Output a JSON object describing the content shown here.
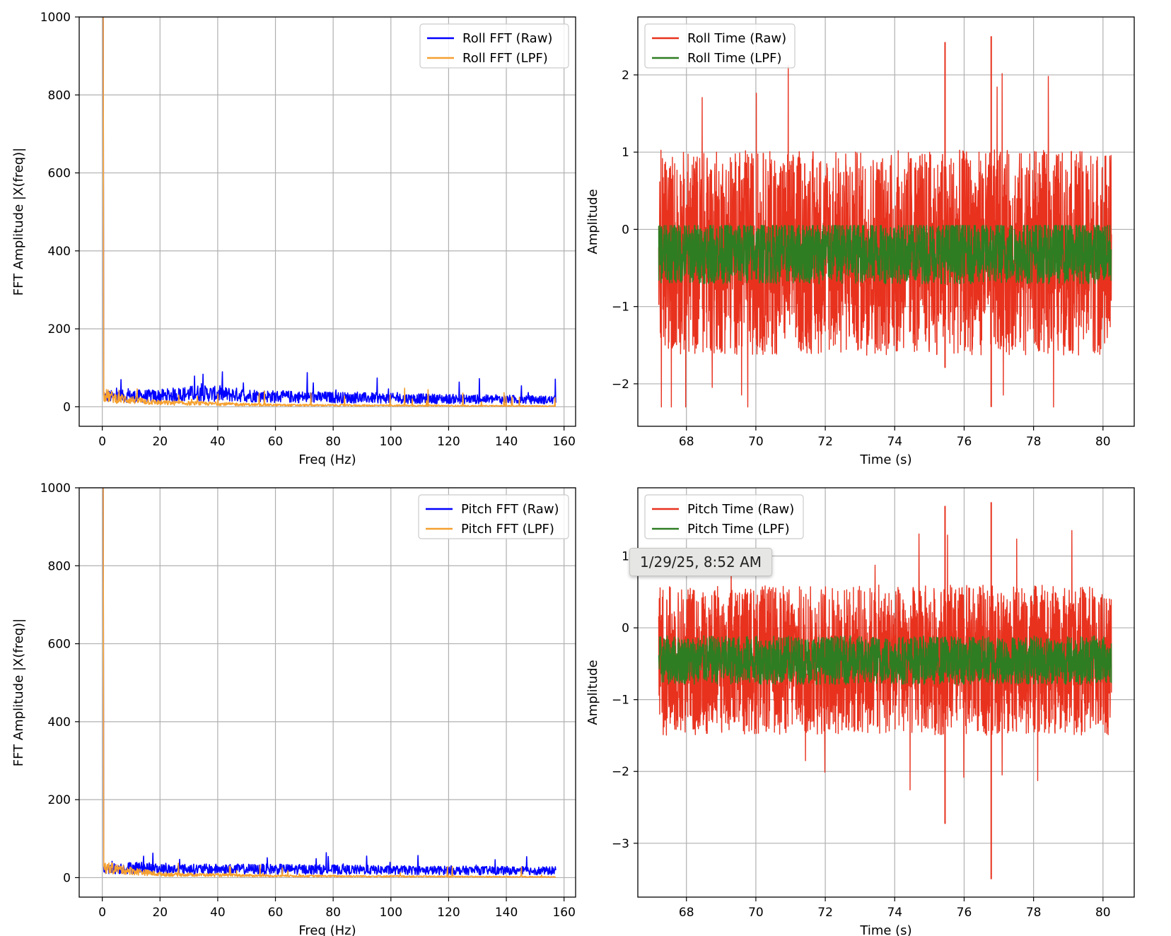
{
  "chart_data": [
    {
      "type": "line",
      "xlabel": "Freq (Hz)",
      "ylabel": "FFT Amplitude |X(freq)|",
      "xlim": [
        -8,
        164
      ],
      "ylim": [
        -50,
        1000
      ],
      "xticks": [
        0,
        20,
        40,
        60,
        80,
        100,
        120,
        140,
        160
      ],
      "yticks": [
        0,
        200,
        400,
        600,
        800,
        1000
      ],
      "grid": true,
      "legend_position": "upper right",
      "series": [
        {
          "name": "Roll FFT (Raw)",
          "color": "#0000ff",
          "dc_peak": 1000,
          "baseline": [
            [
              0.5,
              30
            ],
            [
              20,
              32
            ],
            [
              33,
              40
            ],
            [
              60,
              30
            ],
            [
              100,
              25
            ],
            [
              157,
              20
            ]
          ],
          "noise_max": 92
        },
        {
          "name": "Roll FFT (LPF)",
          "color": "#f5a030",
          "dc_peak": 1000,
          "baseline": [
            [
              0.5,
              35
            ],
            [
              5,
              25
            ],
            [
              20,
              12
            ],
            [
              60,
              5
            ],
            [
              157,
              2
            ]
          ],
          "noise_max": 50
        }
      ]
    },
    {
      "type": "line",
      "xlabel": "Time (s)",
      "ylabel": "Amplitude",
      "xlim": [
        66.6,
        80.9
      ],
      "ylim": [
        -2.55,
        2.75
      ],
      "xticks": [
        68,
        70,
        72,
        74,
        76,
        78,
        80
      ],
      "yticks": [
        -2,
        -1,
        0,
        1,
        2
      ],
      "grid": true,
      "legend_position": "upper left",
      "x_range": [
        67.2,
        80.25
      ],
      "series": [
        {
          "name": "Roll Time (Raw)",
          "color": "#e8321e",
          "mean": -0.3,
          "max": 2.5,
          "min": -2.3
        },
        {
          "name": "Roll Time (LPF)",
          "color": "#2e7d22",
          "mean": -0.3,
          "max": 0.05,
          "min": -0.85
        }
      ]
    },
    {
      "type": "line",
      "xlabel": "Freq (Hz)",
      "ylabel": "FFT Amplitude |X(freq)|",
      "xlim": [
        -8,
        164
      ],
      "ylim": [
        -50,
        1000
      ],
      "xticks": [
        0,
        20,
        40,
        60,
        80,
        100,
        120,
        140,
        160
      ],
      "yticks": [
        0,
        200,
        400,
        600,
        800,
        1000
      ],
      "grid": true,
      "legend_position": "upper right",
      "series": [
        {
          "name": "Pitch FFT (Raw)",
          "color": "#0000ff",
          "dc_peak": 1000,
          "baseline": [
            [
              0.5,
              25
            ],
            [
              12,
              30
            ],
            [
              20,
              25
            ],
            [
              60,
              25
            ],
            [
              100,
              22
            ],
            [
              157,
              20
            ]
          ],
          "noise_max": 65
        },
        {
          "name": "Pitch FFT (LPF)",
          "color": "#f5a030",
          "dc_peak": 1000,
          "baseline": [
            [
              0.5,
              30
            ],
            [
              5,
              25
            ],
            [
              20,
              10
            ],
            [
              60,
              5
            ],
            [
              157,
              2
            ]
          ],
          "noise_max": 40
        }
      ]
    },
    {
      "type": "line",
      "xlabel": "Time (s)",
      "ylabel": "Amplitude",
      "xlim": [
        66.6,
        80.9
      ],
      "ylim": [
        -3.75,
        1.95
      ],
      "xticks": [
        68,
        70,
        72,
        74,
        76,
        78,
        80
      ],
      "yticks": [
        -3,
        -2,
        -1,
        0,
        1
      ],
      "grid": true,
      "legend_position": "upper left",
      "x_range": [
        67.2,
        80.25
      ],
      "series": [
        {
          "name": "Pitch Time (Raw)",
          "color": "#e8321e",
          "mean": -0.45,
          "max": 1.75,
          "min": -3.5
        },
        {
          "name": "Pitch Time (LPF)",
          "color": "#2e7d22",
          "mean": -0.45,
          "max": -0.05,
          "min": -0.8
        }
      ]
    }
  ],
  "tooltip": {
    "text": "1/29/25, 8:52 AM"
  }
}
